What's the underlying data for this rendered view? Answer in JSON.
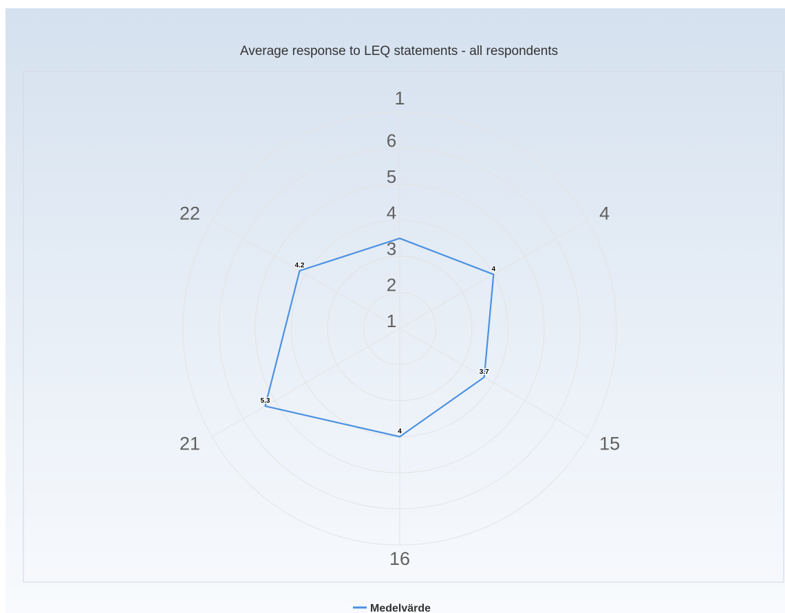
{
  "chart_data": {
    "type": "radar",
    "title": "Average response to LEQ statements - all respondents",
    "categories": [
      "1",
      "4",
      "15",
      "16",
      "21",
      "22"
    ],
    "radial_tick_labels": [
      "1",
      "2",
      "3",
      "4",
      "5",
      "6"
    ],
    "rmin": 1,
    "rmax": 7,
    "grid": true,
    "legend_position": "bottom",
    "series": [
      {
        "name": "Medelvärde",
        "color": "#4a90e2",
        "values": [
          3.5,
          4,
          3.7,
          4,
          5.3,
          4.2
        ],
        "data_labels": [
          "",
          "4",
          "3.7",
          "4",
          "5.3",
          "4.2"
        ]
      }
    ]
  }
}
